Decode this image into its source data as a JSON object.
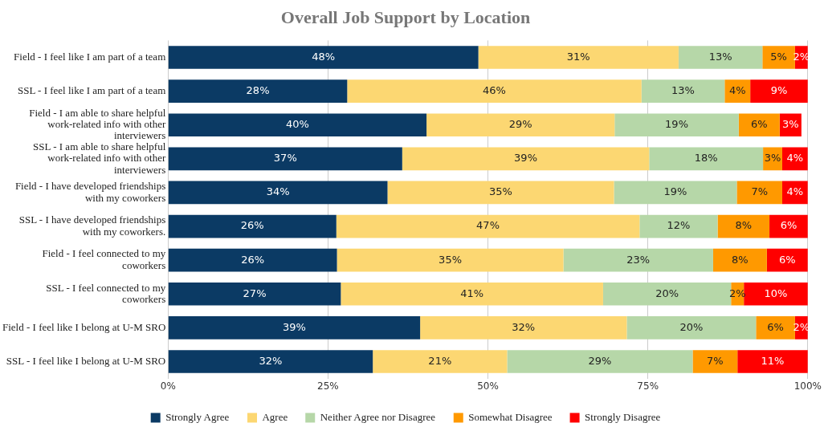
{
  "chart_data": {
    "type": "bar",
    "orientation": "horizontal",
    "stacked": true,
    "title": "Overall Job Support by Location",
    "categories": [
      "Field - I feel like I am part of a team",
      "SSL - I feel like I am part of a team",
      "Field - I am able to share helpful work-related info with other interviewers",
      "SSL - I am able to share helpful work-related info with other interviewers",
      "Field - I have developed friendships with my coworkers",
      "SSL - I have developed friendships with my coworkers.",
      "Field - I feel connected to my coworkers",
      "SSL - I feel connected to my coworkers",
      "Field - I feel like I belong at U-M SRO",
      "SSL - I feel like I belong at U-M SRO"
    ],
    "series": [
      {
        "name": "Strongly Agree",
        "color": "#0b3a64",
        "values": [
          48.5,
          28,
          40.4,
          36.6,
          34.3,
          26.3,
          26.4,
          27,
          39.4,
          32
        ],
        "value_labels": [
          "48%",
          "28%",
          "40%",
          "37%",
          "34%",
          "26%",
          "26%",
          "27%",
          "39%",
          "32%"
        ]
      },
      {
        "name": "Agree",
        "color": "#fcd772",
        "values": [
          31.3,
          46,
          29.4,
          38.6,
          35.4,
          47.4,
          35.4,
          41,
          32.3,
          21
        ],
        "value_labels": [
          "31%",
          "46%",
          "29%",
          "39%",
          "35%",
          "47%",
          "35%",
          "41%",
          "32%",
          "21%"
        ]
      },
      {
        "name": "Neither Agree nor Disagree",
        "color": "#b6d7a8",
        "values": [
          13.1,
          13,
          19.4,
          17.8,
          19.2,
          12.2,
          23.4,
          20,
          20.2,
          29
        ],
        "value_labels": [
          "13%",
          "13%",
          "19%",
          "18%",
          "19%",
          "12%",
          "23%",
          "20%",
          "20%",
          "29%"
        ]
      },
      {
        "name": "Somewhat Disagree",
        "color": "#ff9900",
        "values": [
          5.1,
          4,
          6.4,
          3,
          7.1,
          8.1,
          8.4,
          2,
          6.1,
          7
        ],
        "value_labels": [
          "5%",
          "4%",
          "6%",
          "3%",
          "7%",
          "8%",
          "8%",
          "2%",
          "6%",
          "7%"
        ]
      },
      {
        "name": "Strongly Disagree",
        "color": "#ff0000",
        "values": [
          2,
          9,
          3.4,
          4,
          4,
          6,
          6.4,
          10,
          2,
          11
        ],
        "value_labels": [
          "2%",
          "9%",
          "3%",
          "4%",
          "4%",
          "6%",
          "6%",
          "10%",
          "2%",
          "11%"
        ]
      }
    ],
    "xlim": [
      0,
      100
    ],
    "xticks": [
      {
        "value": 0,
        "label": "0%"
      },
      {
        "value": 25,
        "label": "25%"
      },
      {
        "value": 50,
        "label": "50%"
      },
      {
        "value": 75,
        "label": "75%"
      },
      {
        "value": 100,
        "label": "100%"
      }
    ],
    "grid": "x",
    "legend": "bottom"
  }
}
